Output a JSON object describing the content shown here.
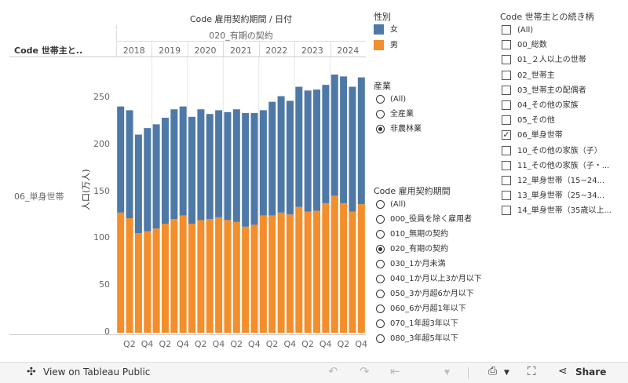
{
  "header": {
    "title": "Code 雇用契約期間 / 日付",
    "subtitle": "020_有期の契約",
    "row_header": "Code 世帯主と..",
    "row_label": "06_単身世帯",
    "y_axis_label": "人口(万人)"
  },
  "chart_data": {
    "type": "bar",
    "stacked": true,
    "years": [
      "2018",
      "2019",
      "2020",
      "2021",
      "2022",
      "2023",
      "2024"
    ],
    "quarter_labels": [
      "Q2",
      "Q4"
    ],
    "categories": [
      "2018Q1",
      "2018Q2",
      "2018Q3",
      "2018Q4",
      "2019Q1",
      "2019Q2",
      "2019Q3",
      "2019Q4",
      "2020Q1",
      "2020Q2",
      "2020Q3",
      "2020Q4",
      "2021Q1",
      "2021Q2",
      "2021Q3",
      "2021Q4",
      "2022Q1",
      "2022Q2",
      "2022Q3",
      "2022Q4",
      "2023Q1",
      "2023Q2",
      "2023Q3",
      "2023Q4",
      "2024Q1",
      "2024Q2",
      "2024Q3",
      "2024Q4"
    ],
    "series": [
      {
        "name": "男",
        "color": "#f28e2b",
        "values": [
          128,
          122,
          106,
          108,
          111,
          116,
          121,
          125,
          116,
          120,
          121,
          123,
          120,
          118,
          113,
          115,
          125,
          125,
          128,
          126,
          134,
          129,
          130,
          138,
          146,
          138,
          129,
          137
        ]
      },
      {
        "name": "女",
        "color": "#4e79a7",
        "values": [
          113,
          115,
          105,
          110,
          111,
          113,
          117,
          116,
          114,
          118,
          112,
          114,
          115,
          120,
          121,
          119,
          112,
          121,
          124,
          121,
          128,
          129,
          129,
          126,
          129,
          135,
          133,
          135
        ]
      }
    ],
    "ylim": [
      0,
      280
    ],
    "yticks": [
      0,
      50,
      100,
      150,
      200,
      250
    ]
  },
  "legend": {
    "title": "性別",
    "items": [
      {
        "label": "女",
        "color": "#4e79a7"
      },
      {
        "label": "男",
        "color": "#f28e2b"
      }
    ]
  },
  "filter_industry": {
    "title": "産業",
    "options": [
      {
        "label": "(All)",
        "selected": false
      },
      {
        "label": "全産業",
        "selected": false
      },
      {
        "label": "非農林業",
        "selected": true
      }
    ]
  },
  "filter_contract": {
    "title": "Code 雇用契約期間",
    "options": [
      {
        "label": "(All)",
        "selected": false
      },
      {
        "label": "000_役員を除く雇用者",
        "selected": false
      },
      {
        "label": "010_無期の契約",
        "selected": false
      },
      {
        "label": "020_有期の契約",
        "selected": true
      },
      {
        "label": "030_1か月未満",
        "selected": false
      },
      {
        "label": "040_1か月以上3か月以下",
        "selected": false
      },
      {
        "label": "050_3か月超6か月以下",
        "selected": false
      },
      {
        "label": "060_6か月超1年以下",
        "selected": false
      },
      {
        "label": "070_1年超3年以下",
        "selected": false
      },
      {
        "label": "080_3年超5年以下",
        "selected": false
      }
    ]
  },
  "filter_household": {
    "title": "Code 世帯主との続き柄",
    "options": [
      {
        "label": "(All)",
        "checked": false
      },
      {
        "label": "00_総数",
        "checked": false
      },
      {
        "label": "01_２人以上の世帯",
        "checked": false
      },
      {
        "label": "02_世帯主",
        "checked": false
      },
      {
        "label": "03_世帯主の配偶者",
        "checked": false
      },
      {
        "label": "04_その他の家族",
        "checked": false
      },
      {
        "label": "05_その他",
        "checked": false
      },
      {
        "label": "06_単身世帯",
        "checked": true
      },
      {
        "label": "10_その他の家族（子）",
        "checked": false
      },
      {
        "label": "11_その他の家族（子・...",
        "checked": false
      },
      {
        "label": "12_単身世帯（15~24...",
        "checked": false
      },
      {
        "label": "13_単身世帯（25~34...",
        "checked": false
      },
      {
        "label": "14_単身世帯（35歳以上...",
        "checked": false
      }
    ]
  },
  "footer": {
    "view_label": "View on Tableau Public",
    "share_label": "Share"
  }
}
